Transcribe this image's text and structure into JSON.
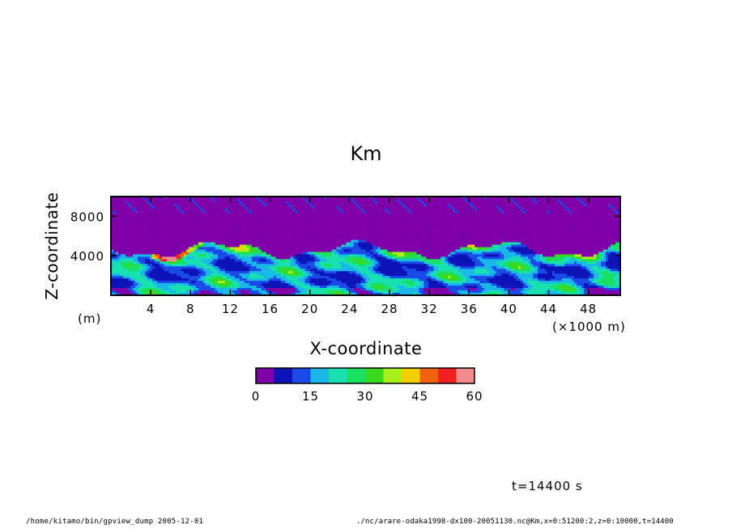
{
  "chart_data": {
    "type": "heatmap",
    "title": "Km",
    "xlabel": "X-coordinate",
    "ylabel": "Z-coordinate",
    "x_unit": "(×1000 m)",
    "y_unit": "(m)",
    "xlim": [
      0,
      51.2
    ],
    "ylim": [
      0,
      10000
    ],
    "x_ticks": [
      "4",
      "8",
      "12",
      "16",
      "20",
      "24",
      "28",
      "32",
      "36",
      "40",
      "44",
      "48"
    ],
    "y_ticks": [
      "4000",
      "8000"
    ],
    "colorbar": {
      "colors": [
        "#7f00a8",
        "#0c14b8",
        "#1a4be8",
        "#19b8e8",
        "#19e0b0",
        "#19e060",
        "#3cd81e",
        "#a8f01c",
        "#f0d000",
        "#f06010",
        "#f02020",
        "#f08c8c"
      ],
      "levels": [
        0,
        5,
        10,
        15,
        20,
        25,
        30,
        35,
        40,
        45,
        50,
        55,
        60
      ],
      "tick_labels": [
        "0",
        "15",
        "30",
        "45",
        "60"
      ]
    },
    "grid": false
  },
  "annotations": {
    "time": "t=14400 s"
  },
  "footer": {
    "left": "/home/kitamo/bin/gpview_dump  2005-12-01",
    "right": "./nc/arare-odaka1998-dx100-20051130.nc@Km,x=0:51200:2,z=0:10000,t=14400"
  }
}
